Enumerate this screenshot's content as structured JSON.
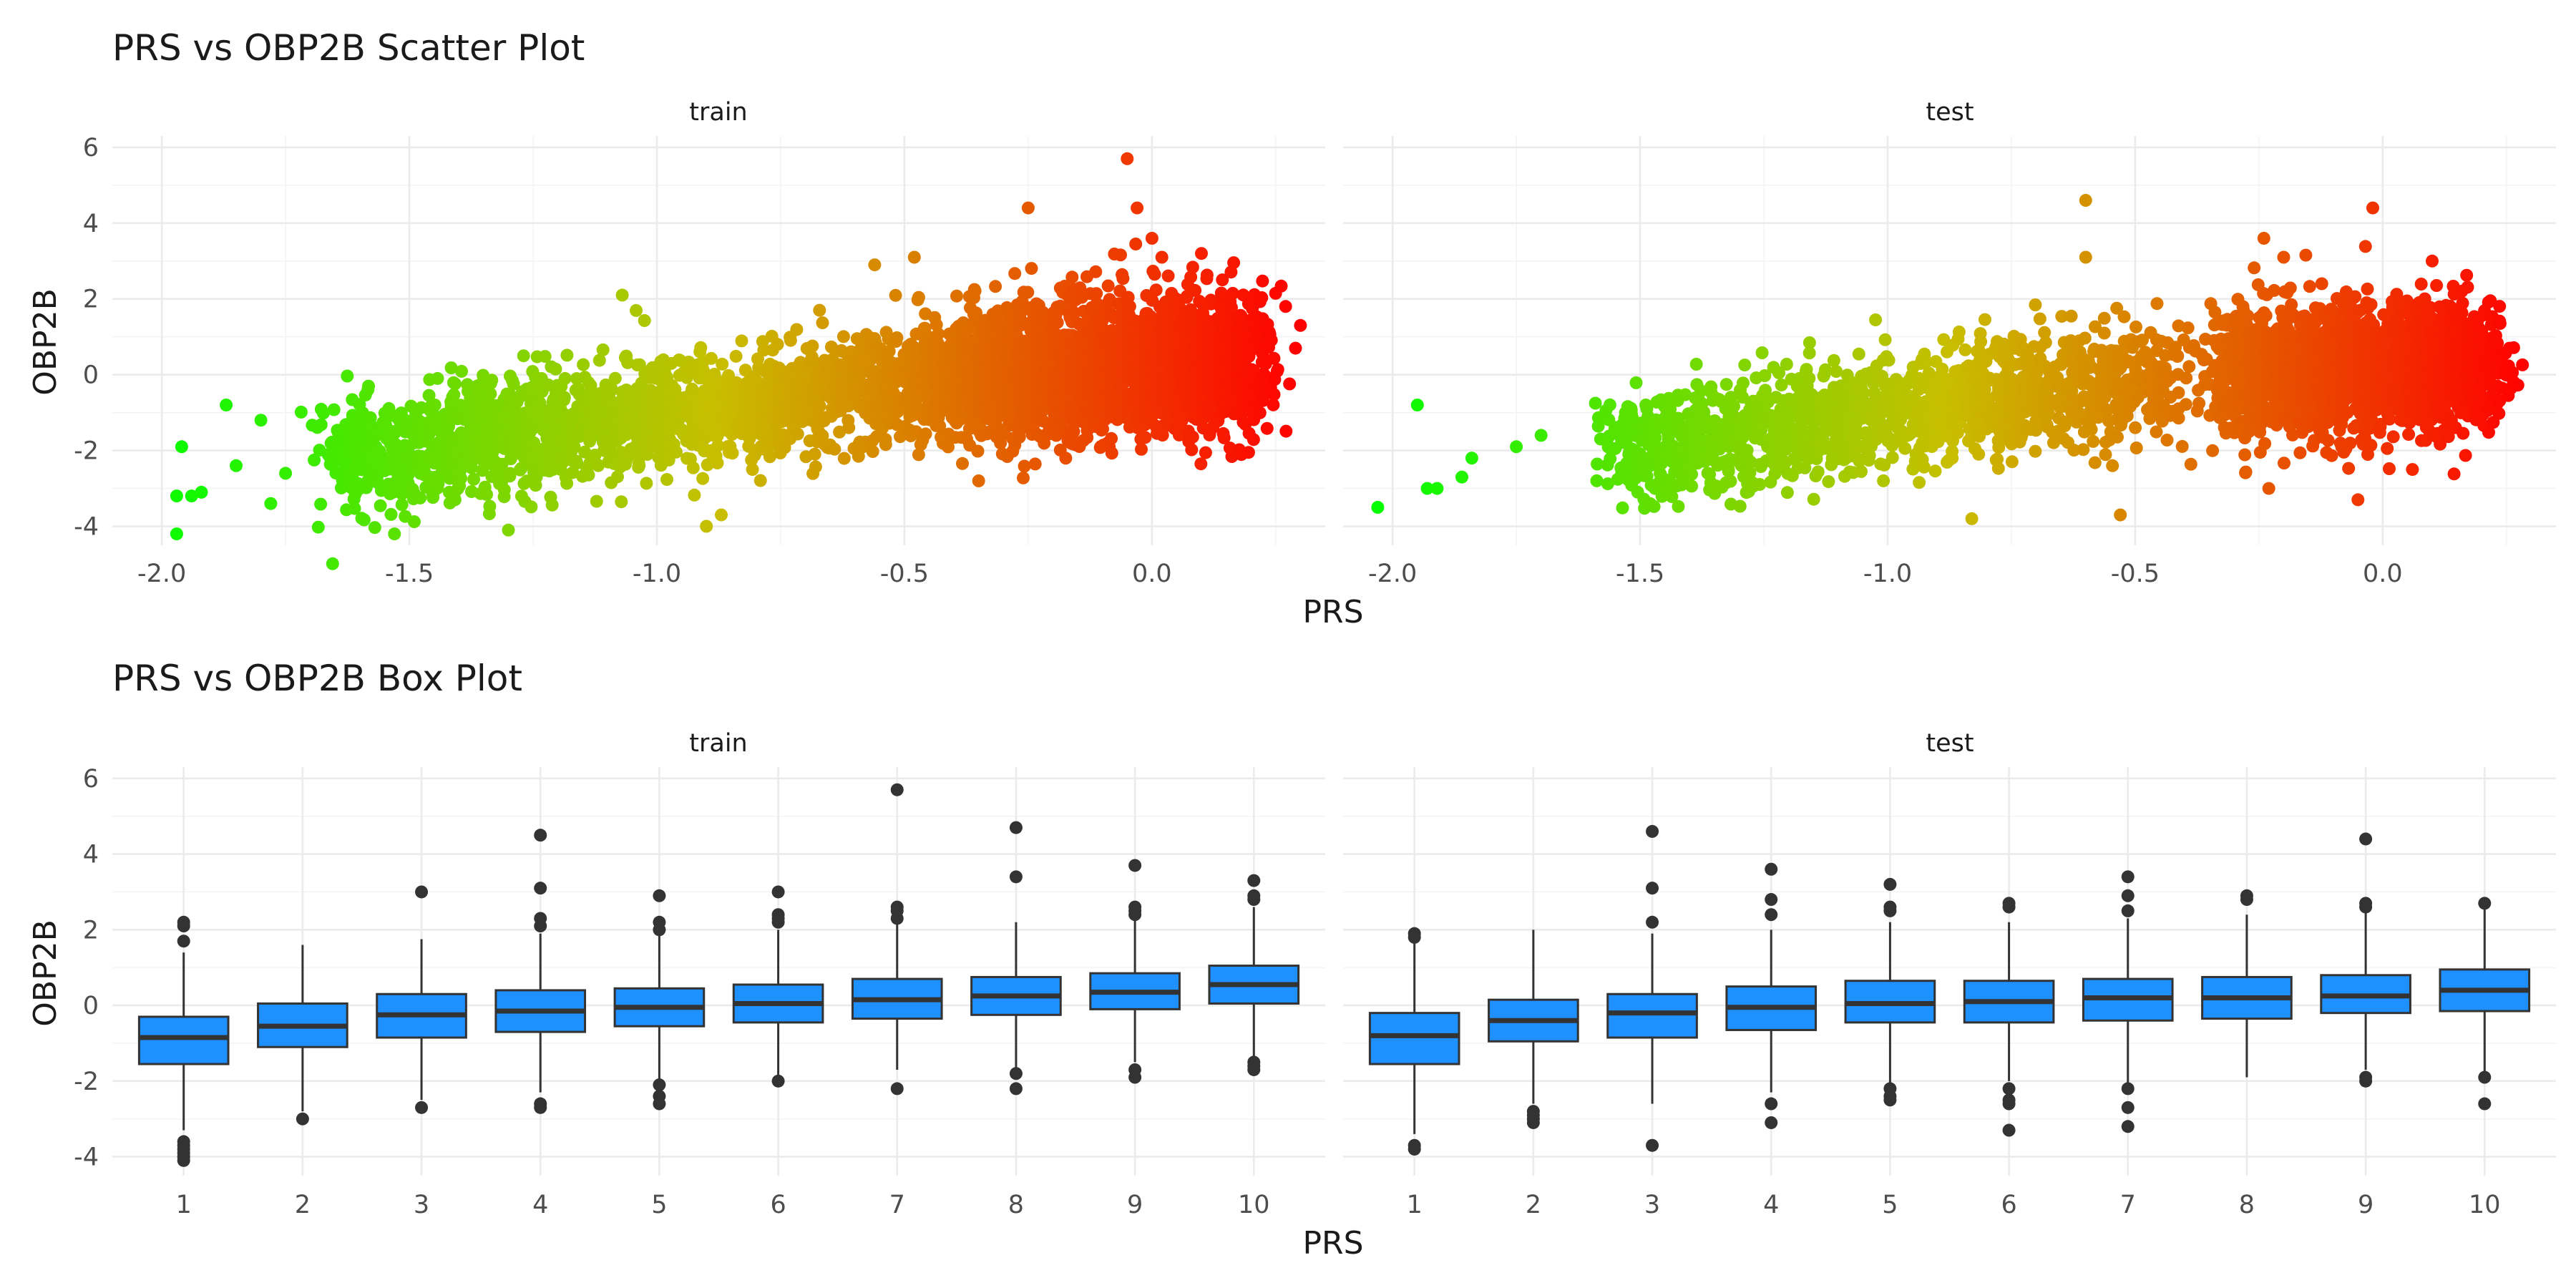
{
  "colors": {
    "scatter_low": "#00ff00",
    "scatter_high": "#ff0000",
    "box_fill": "#1e90ff",
    "box_outline": "#333333",
    "grid": "#ebebeb",
    "text": "#1a1a1a",
    "tick": "#4d4d4d"
  },
  "chart_data": [
    {
      "type": "scatter",
      "title": "PRS vs OBP2B Scatter Plot",
      "xlabel": "PRS",
      "ylabel": "OBP2B",
      "facets": [
        "train",
        "test"
      ],
      "xlim": [
        -2.1,
        0.35
      ],
      "ylim": [
        -4.5,
        6.3
      ],
      "x_ticks": [
        "-2.0",
        "-1.5",
        "-1.0",
        "-0.5",
        "0.0"
      ],
      "x_tick_values": [
        -2.0,
        -1.5,
        -1.0,
        -0.5,
        0.0
      ],
      "y_ticks": [
        "6",
        "4",
        "2",
        "0",
        "-2",
        "-4"
      ],
      "y_tick_values": [
        6,
        4,
        2,
        0,
        -2,
        -4
      ],
      "color_mapping": "PRS value, green (low) to red (high)",
      "grid": true,
      "legend": "none",
      "series": [
        {
          "facet": "train",
          "clusters": [
            {
              "x_range": [
                -1.65,
                -0.35
              ],
              "y_center_at_xmin": -2.2,
              "y_center_at_xmax": 0.0,
              "spread": 0.75,
              "n": 2000
            },
            {
              "x_range": [
                -0.38,
                0.22
              ],
              "y_center_at_xmin": 0.0,
              "y_center_at_xmax": 0.4,
              "spread": 0.9,
              "n": 2200
            }
          ],
          "outliers": [
            {
              "x": -1.97,
              "y": -4.2
            },
            {
              "x": -1.96,
              "y": -1.9
            },
            {
              "x": -1.97,
              "y": -3.2
            },
            {
              "x": -1.94,
              "y": -3.2
            },
            {
              "x": -1.92,
              "y": -3.1
            },
            {
              "x": -1.87,
              "y": -0.8
            },
            {
              "x": -1.85,
              "y": -2.4
            },
            {
              "x": -1.8,
              "y": -1.2
            },
            {
              "x": -1.78,
              "y": -3.4
            },
            {
              "x": -1.75,
              "y": -2.6
            },
            {
              "x": -1.53,
              "y": -4.2
            },
            {
              "x": -1.3,
              "y": -4.1
            },
            {
              "x": -1.07,
              "y": 2.1
            },
            {
              "x": -0.9,
              "y": -4.0
            },
            {
              "x": -0.87,
              "y": -3.7
            },
            {
              "x": -0.56,
              "y": 2.9
            },
            {
              "x": -0.48,
              "y": 3.1
            },
            {
              "x": -0.25,
              "y": 4.4
            },
            {
              "x": -0.35,
              "y": -2.8
            },
            {
              "x": -0.05,
              "y": 5.7
            },
            {
              "x": -0.03,
              "y": 4.4
            },
            {
              "x": 0.0,
              "y": 3.6
            },
            {
              "x": 0.02,
              "y": 3.1
            },
            {
              "x": 0.1,
              "y": 3.2
            },
            {
              "x": 0.27,
              "y": 1.8
            },
            {
              "x": 0.3,
              "y": 1.3
            },
            {
              "x": 0.29,
              "y": 0.7
            }
          ]
        },
        {
          "facet": "test",
          "clusters": [
            {
              "x_range": [
                -1.55,
                -0.42
              ],
              "y_center_at_xmin": -2.0,
              "y_center_at_xmax": 0.0,
              "spread": 0.75,
              "n": 1400
            },
            {
              "x_range": [
                -0.32,
                0.22
              ],
              "y_center_at_xmin": 0.0,
              "y_center_at_xmax": 0.3,
              "spread": 0.85,
              "n": 1700
            }
          ],
          "outliers": [
            {
              "x": -2.03,
              "y": -3.5
            },
            {
              "x": -1.95,
              "y": -0.8
            },
            {
              "x": -1.93,
              "y": -3.0
            },
            {
              "x": -1.91,
              "y": -3.0
            },
            {
              "x": -1.86,
              "y": -2.7
            },
            {
              "x": -1.84,
              "y": -2.2
            },
            {
              "x": -1.75,
              "y": -1.9
            },
            {
              "x": -1.7,
              "y": -1.6
            },
            {
              "x": -1.47,
              "y": -3.0
            },
            {
              "x": -0.83,
              "y": -3.8
            },
            {
              "x": -0.6,
              "y": 4.6
            },
            {
              "x": -0.6,
              "y": 3.1
            },
            {
              "x": -0.53,
              "y": -3.7
            },
            {
              "x": -0.24,
              "y": 3.6
            },
            {
              "x": -0.2,
              "y": 3.1
            },
            {
              "x": -0.02,
              "y": 4.4
            },
            {
              "x": 0.1,
              "y": 3.0
            },
            {
              "x": -0.23,
              "y": -3.0
            },
            {
              "x": -0.05,
              "y": -3.3
            },
            {
              "x": 0.06,
              "y": -2.5
            }
          ]
        }
      ]
    },
    {
      "type": "box",
      "title": "PRS vs OBP2B Box Plot",
      "xlabel": "PRS",
      "ylabel": "OBP2B",
      "facets": [
        "train",
        "test"
      ],
      "categories": [
        "1",
        "2",
        "3",
        "4",
        "5",
        "6",
        "7",
        "8",
        "9",
        "10"
      ],
      "ylim": [
        -4.5,
        6.3
      ],
      "y_ticks": [
        "6",
        "4",
        "2",
        "0",
        "-2",
        "-4"
      ],
      "y_tick_values": [
        6,
        4,
        2,
        0,
        -2,
        -4
      ],
      "grid": true,
      "legend": "none",
      "series": [
        {
          "facet": "train",
          "boxes": [
            {
              "q1": -1.55,
              "median": -0.85,
              "q3": -0.3,
              "whisker_low": -3.3,
              "whisker_high": 1.4,
              "outliers": [
                2.2,
                2.1,
                1.7,
                -3.6,
                -3.7,
                -3.8,
                -3.9,
                -4.0,
                -4.1
              ]
            },
            {
              "q1": -1.1,
              "median": -0.55,
              "q3": 0.05,
              "whisker_low": -2.8,
              "whisker_high": 1.6,
              "outliers": [
                -3.0
              ]
            },
            {
              "q1": -0.85,
              "median": -0.25,
              "q3": 0.3,
              "whisker_low": -2.5,
              "whisker_high": 1.75,
              "outliers": [
                3.0,
                -2.7
              ]
            },
            {
              "q1": -0.7,
              "median": -0.15,
              "q3": 0.4,
              "whisker_low": -2.3,
              "whisker_high": 1.9,
              "outliers": [
                4.5,
                3.1,
                2.3,
                2.1,
                -2.6,
                -2.7
              ]
            },
            {
              "q1": -0.55,
              "median": -0.05,
              "q3": 0.45,
              "whisker_low": -2.0,
              "whisker_high": 1.9,
              "outliers": [
                2.9,
                2.2,
                2.0,
                -2.1,
                -2.4,
                -2.6
              ]
            },
            {
              "q1": -0.45,
              "median": 0.05,
              "q3": 0.55,
              "whisker_low": -1.9,
              "whisker_high": 2.0,
              "outliers": [
                3.0,
                2.4,
                2.3,
                2.2,
                -2.0
              ]
            },
            {
              "q1": -0.35,
              "median": 0.15,
              "q3": 0.7,
              "whisker_low": -1.7,
              "whisker_high": 2.2,
              "outliers": [
                5.7,
                2.6,
                2.5,
                2.3,
                -2.2
              ]
            },
            {
              "q1": -0.25,
              "median": 0.25,
              "q3": 0.75,
              "whisker_low": -1.7,
              "whisker_high": 2.2,
              "outliers": [
                4.7,
                3.4,
                -1.8,
                -2.2
              ]
            },
            {
              "q1": -0.1,
              "median": 0.35,
              "q3": 0.85,
              "whisker_low": -1.5,
              "whisker_high": 2.4,
              "outliers": [
                3.7,
                2.6,
                2.5,
                2.4,
                -1.7,
                -1.9
              ]
            },
            {
              "q1": 0.05,
              "median": 0.55,
              "q3": 1.05,
              "whisker_low": -1.4,
              "whisker_high": 2.6,
              "outliers": [
                3.3,
                2.9,
                2.8,
                -1.5,
                -1.6,
                -1.7
              ]
            }
          ]
        },
        {
          "facet": "test",
          "boxes": [
            {
              "q1": -1.55,
              "median": -0.8,
              "q3": -0.2,
              "whisker_low": -3.4,
              "whisker_high": 1.7,
              "outliers": [
                1.9,
                1.8,
                -3.7,
                -3.8
              ]
            },
            {
              "q1": -0.95,
              "median": -0.4,
              "q3": 0.15,
              "whisker_low": -2.6,
              "whisker_high": 2.0,
              "outliers": [
                -2.8,
                -2.9,
                -3.0,
                -3.1
              ]
            },
            {
              "q1": -0.85,
              "median": -0.2,
              "q3": 0.3,
              "whisker_low": -2.6,
              "whisker_high": 1.9,
              "outliers": [
                4.6,
                3.1,
                2.2,
                -3.7
              ]
            },
            {
              "q1": -0.65,
              "median": -0.05,
              "q3": 0.5,
              "whisker_low": -2.3,
              "whisker_high": 2.0,
              "outliers": [
                3.6,
                2.8,
                2.4,
                -2.6,
                -3.1
              ]
            },
            {
              "q1": -0.45,
              "median": 0.05,
              "q3": 0.65,
              "whisker_low": -2.1,
              "whisker_high": 2.2,
              "outliers": [
                3.2,
                2.6,
                2.5,
                -2.2,
                -2.4,
                -2.5
              ]
            },
            {
              "q1": -0.45,
              "median": 0.1,
              "q3": 0.65,
              "whisker_low": -2.0,
              "whisker_high": 2.2,
              "outliers": [
                2.7,
                2.6,
                -2.2,
                -2.5,
                -2.6,
                -3.3
              ]
            },
            {
              "q1": -0.4,
              "median": 0.2,
              "q3": 0.7,
              "whisker_low": -2.1,
              "whisker_high": 2.3,
              "outliers": [
                3.4,
                2.9,
                2.5,
                -2.2,
                -2.7,
                -3.2
              ]
            },
            {
              "q1": -0.35,
              "median": 0.2,
              "q3": 0.75,
              "whisker_low": -1.9,
              "whisker_high": 2.4,
              "outliers": [
                2.9,
                2.8
              ]
            },
            {
              "q1": -0.2,
              "median": 0.25,
              "q3": 0.8,
              "whisker_low": -1.7,
              "whisker_high": 2.5,
              "outliers": [
                4.4,
                2.7,
                2.6,
                -1.9,
                -2.0
              ]
            },
            {
              "q1": -0.15,
              "median": 0.4,
              "q3": 0.95,
              "whisker_low": -1.8,
              "whisker_high": 2.6,
              "outliers": [
                2.7,
                -1.9,
                -2.6
              ]
            }
          ]
        }
      ]
    }
  ]
}
